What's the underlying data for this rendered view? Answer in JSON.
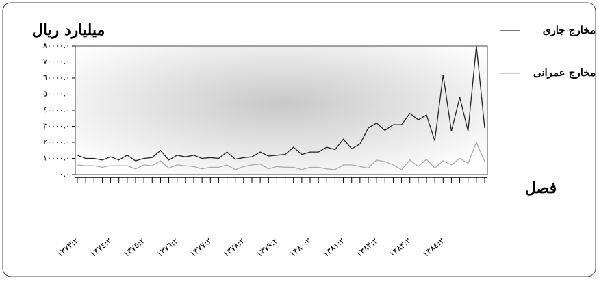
{
  "chart_data": {
    "type": "line",
    "title": "میلیارد ریال",
    "x_label": "فصل",
    "categories": [
      "١٣٧٣:٢",
      null,
      null,
      null,
      "١٣٧٤:٢",
      null,
      null,
      null,
      "١٣٧٥:٢",
      null,
      null,
      null,
      "١٣٧٦:٢",
      null,
      null,
      null,
      "١٣٧٧:٢",
      null,
      null,
      null,
      "١٣٧٨:٢",
      null,
      null,
      null,
      "١٣٧٩:٢",
      null,
      null,
      null,
      "١٣٨٠:٢",
      null,
      null,
      null,
      "١٣٨١:٢",
      null,
      null,
      null,
      "١٣٨٢:٢",
      null,
      null,
      null,
      "١٣٨٣:٢",
      null,
      null,
      null,
      "١٣٨٤:٢",
      null,
      null,
      null,
      null,
      null
    ],
    "series": [
      {
        "name": "مخارج جاری",
        "color": "#222222",
        "values": [
          12000,
          10000,
          10000,
          9000,
          11000,
          9000,
          12000,
          8500,
          10000,
          10500,
          15000,
          9000,
          12000,
          11000,
          12000,
          10000,
          10500,
          10000,
          14000,
          9500,
          10500,
          11000,
          14000,
          11500,
          12000,
          12500,
          17000,
          12500,
          14000,
          14000,
          17000,
          15500,
          22000,
          16000,
          19000,
          29000,
          32000,
          27500,
          31000,
          31000,
          38000,
          34000,
          37000,
          21000,
          62000,
          27000,
          48000,
          27000,
          80000,
          29000
        ]
      },
      {
        "name": "مخارج عمرانی",
        "color": "#aaaaaa",
        "values": [
          6000,
          5500,
          5500,
          4500,
          5500,
          5500,
          5500,
          3500,
          6000,
          5500,
          8500,
          4000,
          6000,
          5500,
          5000,
          3500,
          4500,
          4500,
          6000,
          3000,
          5000,
          6000,
          6500,
          3500,
          5000,
          4500,
          4500,
          3000,
          4500,
          4500,
          3500,
          3000,
          6000,
          6000,
          5000,
          4000,
          9000,
          8000,
          6000,
          3000,
          9000,
          5000,
          9500,
          4000,
          8500,
          6000,
          10000,
          7000,
          20000,
          8000
        ]
      }
    ],
    "ylim": [
      0,
      80000
    ],
    "yticks": [
      {
        "value": 0,
        "label": "٠.٠"
      },
      {
        "value": 10000,
        "label": "١٠٠٠٠.٠"
      },
      {
        "value": 20000,
        "label": "٢٠٠٠٠.٠"
      },
      {
        "value": 30000,
        "label": "٣٠٠٠٠.٠"
      },
      {
        "value": 40000,
        "label": "٤٠٠٠٠.٠"
      },
      {
        "value": 50000,
        "label": "٥٠٠٠٠.٠"
      },
      {
        "value": 60000,
        "label": "٦٠٠٠٠.٠"
      },
      {
        "value": 70000,
        "label": "٧٠٠٠٠.٠"
      },
      {
        "value": 80000,
        "label": "٨٠٠٠٠.٠"
      }
    ],
    "grid": false,
    "legend_position": "right"
  }
}
